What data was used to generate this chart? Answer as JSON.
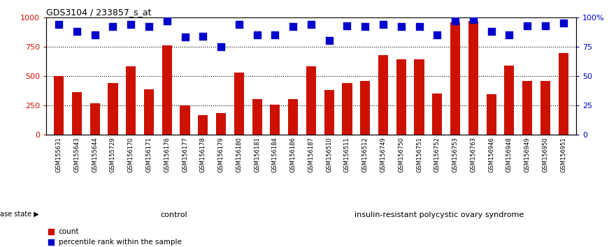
{
  "title": "GDS3104 / 233857_s_at",
  "categories": [
    "GSM155631",
    "GSM155643",
    "GSM155644",
    "GSM155729",
    "GSM156170",
    "GSM156171",
    "GSM156176",
    "GSM156177",
    "GSM156178",
    "GSM156179",
    "GSM156180",
    "GSM156181",
    "GSM156184",
    "GSM156186",
    "GSM156187",
    "GSM156510",
    "GSM156511",
    "GSM156512",
    "GSM156749",
    "GSM156750",
    "GSM156751",
    "GSM156752",
    "GSM156753",
    "GSM156763",
    "GSM156946",
    "GSM156948",
    "GSM156949",
    "GSM156950",
    "GSM156951"
  ],
  "counts": [
    500,
    360,
    265,
    440,
    580,
    385,
    760,
    250,
    165,
    185,
    530,
    300,
    255,
    300,
    580,
    380,
    440,
    460,
    680,
    640,
    640,
    350,
    960,
    970,
    345,
    590,
    460,
    460,
    695
  ],
  "percentile": [
    94,
    88,
    85,
    92,
    94,
    92,
    97,
    83,
    84,
    75,
    94,
    85,
    85,
    92,
    94,
    80,
    93,
    92,
    94,
    92,
    92,
    85,
    97,
    98,
    88,
    85,
    93,
    93,
    95
  ],
  "control_count": 14,
  "bar_color": "#cc1100",
  "dot_color": "#0000cc",
  "control_label": "control",
  "disease_label": "insulin-resistant polycystic ovary syndrome",
  "disease_state_label": "disease state",
  "legend_count": "count",
  "legend_percentile": "percentile rank within the sample",
  "ylim_left": [
    0,
    1000
  ],
  "ylim_right": [
    0,
    100
  ],
  "yticks_left": [
    0,
    250,
    500,
    750,
    1000
  ],
  "yticks_right": [
    0,
    25,
    50,
    75,
    100
  ],
  "background_color": "#ffffff",
  "control_bg": "#bbffbb",
  "disease_bg": "#44cc44",
  "ticklabel_bg": "#d0d0d0",
  "dotted_lines": [
    250,
    500,
    750
  ],
  "dot_size": 45,
  "bar_width": 0.55
}
